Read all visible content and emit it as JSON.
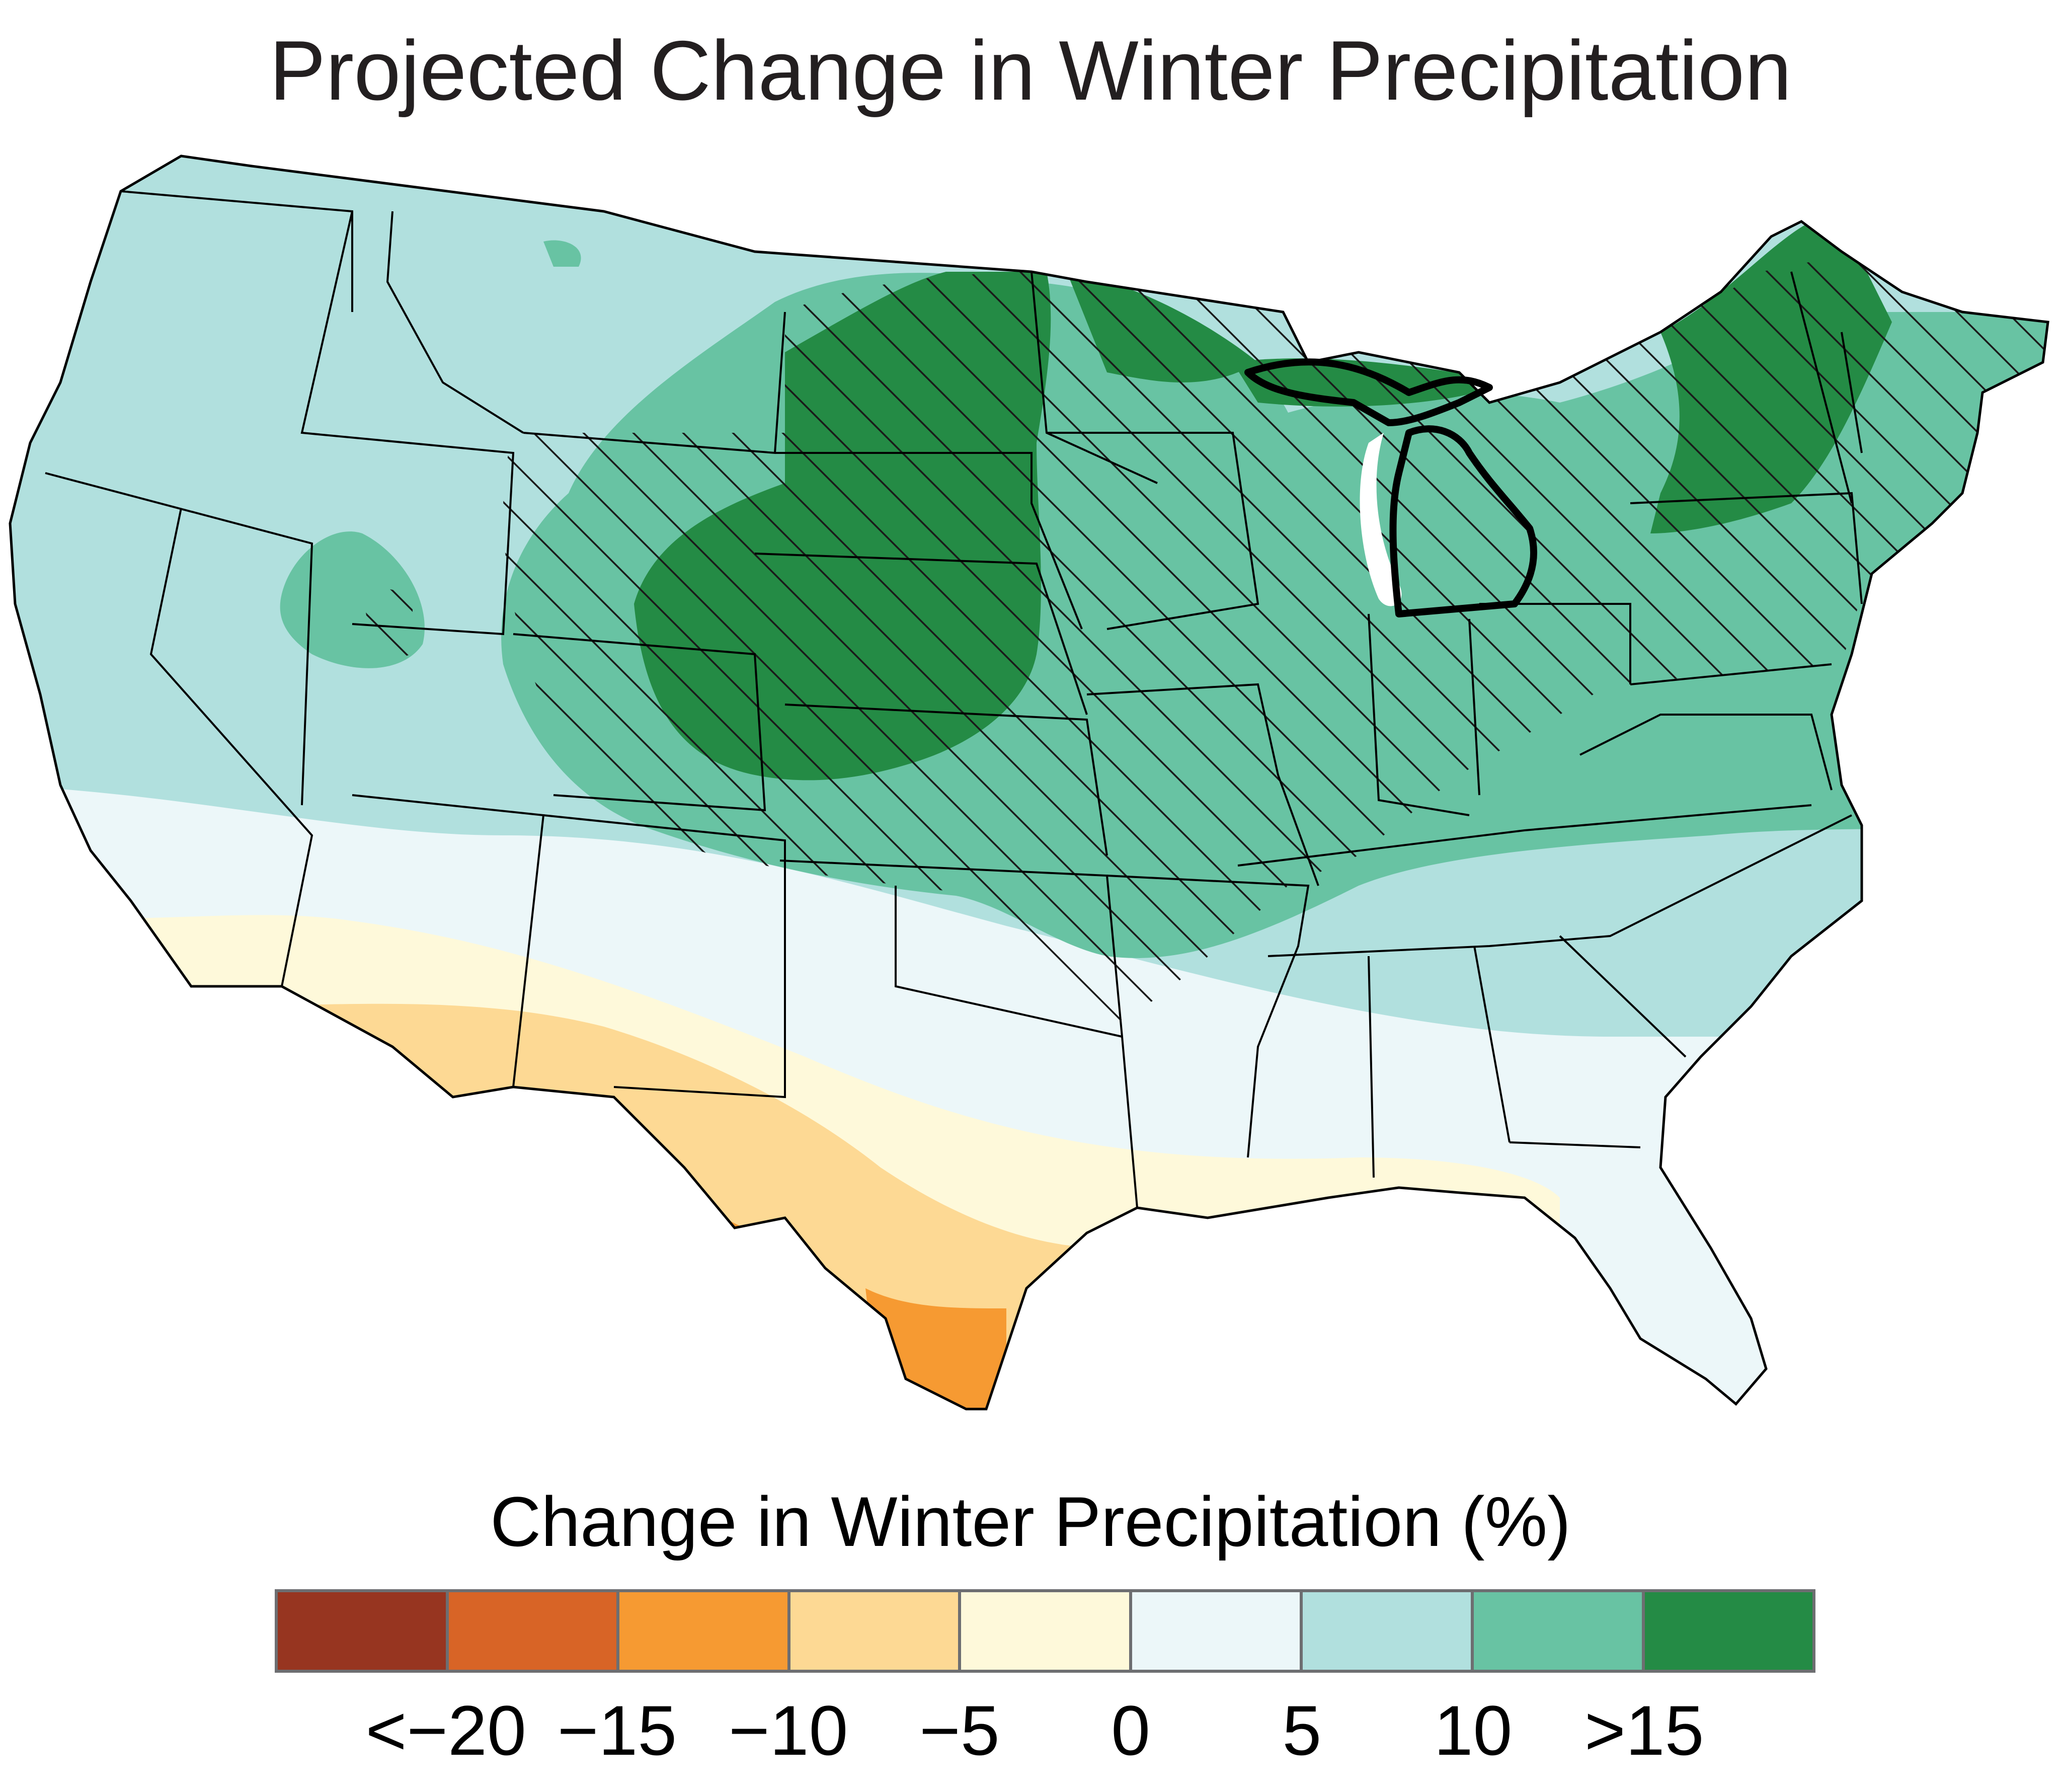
{
  "title": "Projected Change in Winter Precipitation",
  "legend": {
    "title": "Change in Winter Precipitation (%)",
    "classes": [
      {
        "color": "#973520"
      },
      {
        "color": "#d86426"
      },
      {
        "color": "#f69a32"
      },
      {
        "color": "#fdd994"
      },
      {
        "color": "#fef9da"
      },
      {
        "color": "#ecf7f9"
      },
      {
        "color": "#b1e0de"
      },
      {
        "color": "#68c3a3"
      },
      {
        "color": "#248b45"
      }
    ],
    "tick_labels": [
      "<−20",
      "−15",
      "−10",
      "−5",
      "0",
      "5",
      "10",
      ">15"
    ]
  },
  "map": {
    "region": "contiguous United States",
    "hatching": "diagonal hatch marks cover the northern tier and Midwest/Northeast",
    "highlighted_state": "Michigan (bold outline)"
  }
}
